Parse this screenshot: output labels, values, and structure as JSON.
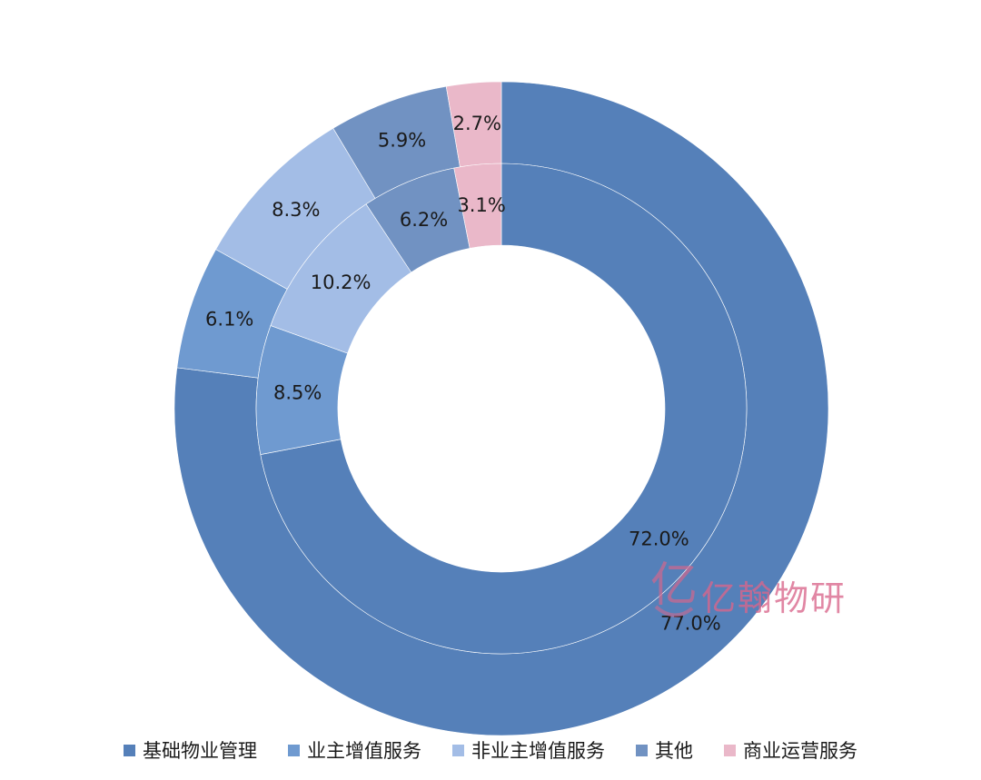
{
  "chart_data": {
    "type": "pie",
    "variant": "nested-donut",
    "title": "",
    "categories": [
      "基础物业管理",
      "业主增值服务",
      "非业主增值服务",
      "其他",
      "商业运营服务"
    ],
    "colors": [
      "#5580b9",
      "#6f9ad0",
      "#a3bde6",
      "#7192c2",
      "#eab8c9"
    ],
    "series": [
      {
        "ring": "outer",
        "values": [
          77.0,
          6.1,
          8.3,
          5.9,
          2.7
        ],
        "labels": [
          "77.0%",
          "6.1%",
          "8.3%",
          "5.9%",
          "2.7%"
        ]
      },
      {
        "ring": "inner",
        "values": [
          72.0,
          8.5,
          10.2,
          6.2,
          3.1
        ],
        "labels": [
          "72.0%",
          "8.5%",
          "10.2%",
          "6.2%",
          "3.1%"
        ]
      }
    ],
    "legend_position": "bottom-center"
  },
  "legend": {
    "items": [
      {
        "label": "基础物业管理",
        "color": "#5580b9"
      },
      {
        "label": "业主增值服务",
        "color": "#6f9ad0"
      },
      {
        "label": "非业主增值服务",
        "color": "#a3bde6"
      },
      {
        "label": "其他",
        "color": "#7192c2"
      },
      {
        "label": "商业运营服务",
        "color": "#eab8c9"
      }
    ]
  },
  "watermark": {
    "text": "亿翰物研",
    "logo_glyph": "亿",
    "color": "#d9668b"
  }
}
